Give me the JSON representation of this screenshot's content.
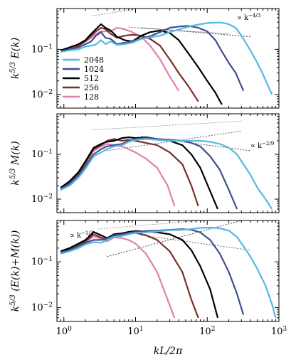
{
  "chart_data": [
    {
      "type": "line",
      "panel": "top",
      "ylabel": "k^{5/3} E(k)",
      "xscale": "log",
      "yscale": "log",
      "xlim": [
        0.8,
        1000
      ],
      "ylim": [
        0.005,
        0.8
      ],
      "ytick_labels": [
        "10^{-1}",
        "10^{-2}"
      ],
      "legend": {
        "placement": "left",
        "entries": [
          "2048",
          "1024",
          "512",
          "256",
          "128"
        ]
      },
      "annotations": [
        "∝ k^{-4/3}"
      ],
      "series": [
        {
          "name": "2048",
          "color": "#56b8e0",
          "x": [
            0.9,
            1.2,
            1.6,
            2.0,
            2.4,
            2.8,
            3.3,
            3.8,
            4.5,
            5.5,
            7,
            9,
            12,
            16,
            22,
            30,
            45,
            60,
            80,
            100,
            130,
            160,
            200,
            250,
            300,
            400,
            500,
            600,
            700,
            800
          ],
          "y": [
            0.088,
            0.095,
            0.1,
            0.115,
            0.12,
            0.128,
            0.16,
            0.13,
            0.15,
            0.125,
            0.13,
            0.14,
            0.17,
            0.185,
            0.2,
            0.24,
            0.29,
            0.33,
            0.36,
            0.38,
            0.39,
            0.39,
            0.36,
            0.3,
            0.2,
            0.095,
            0.05,
            0.028,
            0.016,
            0.01
          ]
        },
        {
          "name": "1024",
          "color": "#3f4f8f",
          "x": [
            0.9,
            1.2,
            1.6,
            2.0,
            2.4,
            2.8,
            3.3,
            3.8,
            4.5,
            5.5,
            7,
            9,
            12,
            16,
            22,
            30,
            40,
            55,
            75,
            100,
            130,
            160,
            200,
            250,
            320
          ],
          "y": [
            0.09,
            0.1,
            0.11,
            0.13,
            0.15,
            0.2,
            0.24,
            0.18,
            0.17,
            0.13,
            0.14,
            0.15,
            0.175,
            0.195,
            0.24,
            0.3,
            0.32,
            0.33,
            0.3,
            0.25,
            0.16,
            0.09,
            0.05,
            0.03,
            0.012
          ]
        },
        {
          "name": "512",
          "color": "#000000",
          "x": [
            0.9,
            1.2,
            1.6,
            2.0,
            2.4,
            2.8,
            3.3,
            3.8,
            4.5,
            5.5,
            7,
            9,
            12,
            16,
            22,
            30,
            40,
            55,
            75,
            100,
            130,
            160
          ],
          "y": [
            0.095,
            0.11,
            0.13,
            0.16,
            0.22,
            0.28,
            0.36,
            0.3,
            0.26,
            0.19,
            0.16,
            0.15,
            0.2,
            0.24,
            0.26,
            0.23,
            0.16,
            0.08,
            0.04,
            0.02,
            0.011,
            0.006
          ]
        },
        {
          "name": "256",
          "color": "#7a2e2a",
          "x": [
            0.9,
            1.2,
            1.6,
            2.0,
            2.4,
            2.8,
            3.3,
            3.8,
            4.5,
            5.5,
            7,
            9,
            12,
            16,
            22,
            30,
            40,
            55,
            75
          ],
          "y": [
            0.092,
            0.1,
            0.12,
            0.15,
            0.2,
            0.25,
            0.3,
            0.28,
            0.22,
            0.18,
            0.2,
            0.21,
            0.2,
            0.17,
            0.12,
            0.06,
            0.03,
            0.015,
            0.007
          ]
        },
        {
          "name": "128",
          "color": "#e07fb0",
          "x": [
            0.9,
            1.2,
            1.6,
            2.0,
            2.4,
            2.8,
            3.3,
            3.8,
            4.5,
            5.5,
            7,
            9,
            12,
            16,
            22,
            30,
            40
          ],
          "y": [
            0.095,
            0.1,
            0.12,
            0.15,
            0.18,
            0.22,
            0.25,
            0.25,
            0.25,
            0.3,
            0.28,
            0.24,
            0.19,
            0.12,
            0.06,
            0.025,
            0.012
          ]
        }
      ]
    },
    {
      "type": "line",
      "panel": "middle",
      "ylabel": "k^{5/3} M(k)",
      "xscale": "log",
      "yscale": "log",
      "xlim": [
        0.8,
        1000
      ],
      "ylim": [
        0.005,
        0.8
      ],
      "ytick_labels": [
        "10^{-1}",
        "10^{-2}"
      ],
      "annotations": [
        "∝ k^{-2/9}"
      ],
      "series": [
        {
          "name": "2048",
          "color": "#56b8e0",
          "x": [
            0.9,
            1.2,
            1.6,
            2.0,
            2.6,
            3.3,
            4.0,
            5,
            6.5,
            8,
            10,
            14,
            20,
            30,
            45,
            60,
            80,
            110,
            150,
            200,
            260,
            320,
            400,
            500,
            650,
            800
          ],
          "y": [
            0.016,
            0.02,
            0.03,
            0.048,
            0.09,
            0.11,
            0.13,
            0.15,
            0.16,
            0.19,
            0.21,
            0.22,
            0.21,
            0.2,
            0.2,
            0.2,
            0.2,
            0.19,
            0.17,
            0.14,
            0.1,
            0.06,
            0.035,
            0.018,
            0.01,
            0.006
          ]
        },
        {
          "name": "1024",
          "color": "#3f4f8f",
          "x": [
            0.9,
            1.2,
            1.6,
            2.0,
            2.6,
            3.3,
            4.0,
            5,
            6.5,
            8,
            10,
            14,
            20,
            30,
            45,
            60,
            80,
            110,
            150,
            200,
            260
          ],
          "y": [
            0.017,
            0.022,
            0.034,
            0.055,
            0.1,
            0.13,
            0.15,
            0.16,
            0.17,
            0.2,
            0.22,
            0.23,
            0.22,
            0.21,
            0.2,
            0.18,
            0.15,
            0.09,
            0.045,
            0.016,
            0.006
          ]
        },
        {
          "name": "512",
          "color": "#000000",
          "x": [
            0.9,
            1.2,
            1.6,
            2.0,
            2.6,
            3.3,
            4.0,
            5,
            6.5,
            8,
            10,
            14,
            20,
            30,
            45,
            60,
            80,
            110,
            140
          ],
          "y": [
            0.018,
            0.025,
            0.04,
            0.07,
            0.14,
            0.17,
            0.19,
            0.2,
            0.23,
            0.24,
            0.23,
            0.24,
            0.22,
            0.2,
            0.16,
            0.1,
            0.05,
            0.015,
            0.006
          ]
        },
        {
          "name": "256",
          "color": "#7a2e2a",
          "x": [
            0.9,
            1.2,
            1.6,
            2.0,
            2.6,
            3.3,
            4.0,
            5,
            6.5,
            8,
            10,
            14,
            20,
            30,
            45,
            60,
            75
          ],
          "y": [
            0.018,
            0.024,
            0.038,
            0.065,
            0.13,
            0.16,
            0.2,
            0.22,
            0.2,
            0.21,
            0.2,
            0.18,
            0.16,
            0.11,
            0.06,
            0.02,
            0.007
          ]
        },
        {
          "name": "128",
          "color": "#e07fb0",
          "x": [
            0.9,
            1.2,
            1.6,
            2.0,
            2.6,
            3.3,
            4.0,
            5,
            6.5,
            8,
            10,
            14,
            20,
            28,
            35
          ],
          "y": [
            0.017,
            0.022,
            0.036,
            0.06,
            0.12,
            0.15,
            0.17,
            0.16,
            0.15,
            0.13,
            0.11,
            0.08,
            0.05,
            0.02,
            0.007
          ]
        }
      ]
    },
    {
      "type": "line",
      "panel": "bottom",
      "ylabel": "k^{5/3} (E(k)+M(k))",
      "xlabel": "kL/2π",
      "xscale": "log",
      "yscale": "log",
      "xlim": [
        0.8,
        1000
      ],
      "ylim": [
        0.005,
        0.8
      ],
      "xtick_labels": [
        "10^{0}",
        "10^{1}",
        "10^{2}",
        "10^{3}"
      ],
      "ytick_labels": [
        "10^{-1}",
        "10^{-2}"
      ],
      "annotations": [
        "∝ k^{-1/3}"
      ],
      "series": [
        {
          "name": "2048",
          "color": "#56b8e0",
          "x": [
            0.9,
            1.2,
            1.6,
            2.0,
            2.6,
            3.3,
            4.0,
            5,
            6.5,
            8,
            10,
            14,
            20,
            30,
            45,
            60,
            80,
            110,
            150,
            200,
            260,
            320,
            400,
            500,
            650,
            800,
            900
          ],
          "y": [
            0.15,
            0.17,
            0.2,
            0.24,
            0.27,
            0.26,
            0.3,
            0.35,
            0.37,
            0.4,
            0.43,
            0.44,
            0.46,
            0.49,
            0.5,
            0.52,
            0.55,
            0.56,
            0.54,
            0.48,
            0.35,
            0.22,
            0.13,
            0.07,
            0.03,
            0.012,
            0.006
          ]
        },
        {
          "name": "1024",
          "color": "#3f4f8f",
          "x": [
            0.9,
            1.2,
            1.6,
            2.0,
            2.6,
            3.3,
            4.0,
            5,
            6.5,
            8,
            10,
            14,
            20,
            30,
            45,
            60,
            80,
            110,
            150,
            200,
            260,
            320
          ],
          "y": [
            0.16,
            0.18,
            0.22,
            0.26,
            0.3,
            0.3,
            0.32,
            0.38,
            0.4,
            0.43,
            0.45,
            0.47,
            0.48,
            0.5,
            0.52,
            0.5,
            0.44,
            0.3,
            0.15,
            0.06,
            0.02,
            0.007
          ]
        },
        {
          "name": "512",
          "color": "#000000",
          "x": [
            0.9,
            1.2,
            1.6,
            2.0,
            2.6,
            3.3,
            4.0,
            5,
            6.5,
            8,
            10,
            14,
            20,
            30,
            45,
            60,
            80,
            110,
            140
          ],
          "y": [
            0.17,
            0.2,
            0.25,
            0.3,
            0.45,
            0.38,
            0.33,
            0.4,
            0.42,
            0.45,
            0.47,
            0.46,
            0.44,
            0.4,
            0.3,
            0.18,
            0.08,
            0.025,
            0.006
          ]
        },
        {
          "name": "256",
          "color": "#7a2e2a",
          "x": [
            0.9,
            1.2,
            1.6,
            2.0,
            2.6,
            3.3,
            4.0,
            5,
            6.5,
            8,
            10,
            14,
            20,
            30,
            45,
            60,
            75
          ],
          "y": [
            0.16,
            0.19,
            0.23,
            0.28,
            0.4,
            0.34,
            0.3,
            0.36,
            0.4,
            0.42,
            0.43,
            0.38,
            0.3,
            0.17,
            0.06,
            0.015,
            0.006
          ]
        },
        {
          "name": "128",
          "color": "#e07fb0",
          "x": [
            0.9,
            1.2,
            1.6,
            2.0,
            2.6,
            3.3,
            4.0,
            5,
            6.5,
            8,
            10,
            14,
            20,
            28,
            35
          ],
          "y": [
            0.16,
            0.18,
            0.22,
            0.27,
            0.36,
            0.32,
            0.28,
            0.34,
            0.33,
            0.3,
            0.25,
            0.15,
            0.06,
            0.015,
            0.006
          ]
        }
      ]
    }
  ]
}
